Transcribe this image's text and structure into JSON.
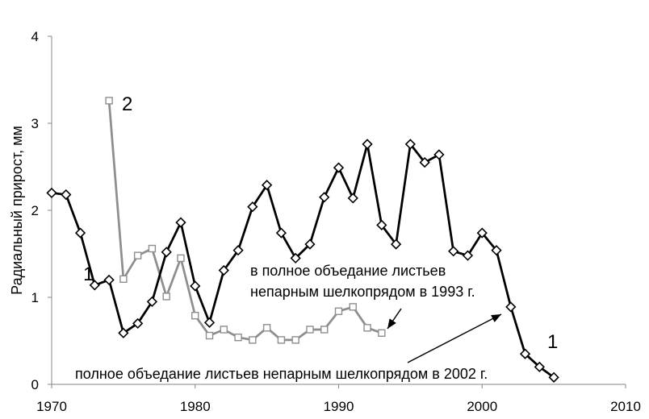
{
  "chart_data": {
    "type": "line",
    "ylabel": "Радиальный прирост, мм",
    "xlim": [
      1970,
      2010
    ],
    "ylim": [
      0,
      4
    ],
    "xticks": [
      1970,
      1980,
      1990,
      2000,
      2010
    ],
    "yticks": [
      0,
      1,
      2,
      3,
      4
    ],
    "grid": false,
    "series": [
      {
        "name": "1",
        "color": "#000000",
        "marker": "diamond",
        "x": [
          1970,
          1971,
          1972,
          1973,
          1974,
          1975,
          1976,
          1977,
          1978,
          1979,
          1980,
          1981,
          1982,
          1983,
          1984,
          1985,
          1986,
          1987,
          1988,
          1989,
          1990,
          1991,
          1992,
          1993,
          1994,
          1995,
          1996,
          1997,
          1998,
          1999,
          2000,
          2001,
          2002,
          2003,
          2004,
          2005
        ],
        "y": [
          2.2,
          2.18,
          1.74,
          1.14,
          1.2,
          0.59,
          0.7,
          0.95,
          1.52,
          1.86,
          1.13,
          0.71,
          1.31,
          1.54,
          2.04,
          2.29,
          1.74,
          1.45,
          1.61,
          2.15,
          2.49,
          2.14,
          2.76,
          1.83,
          1.61,
          2.76,
          2.55,
          2.64,
          1.53,
          1.48,
          1.74,
          1.54,
          0.89,
          0.35,
          0.2,
          0.08
        ]
      },
      {
        "name": "2",
        "color": "#8e8e8e",
        "marker": "square",
        "x": [
          1974,
          1975,
          1976,
          1977,
          1978,
          1979,
          1980,
          1981,
          1982,
          1983,
          1984,
          1985,
          1986,
          1987,
          1988,
          1989,
          1990,
          1991,
          1992,
          1993
        ],
        "y": [
          3.26,
          1.21,
          1.48,
          1.56,
          1.01,
          1.45,
          0.79,
          0.56,
          0.63,
          0.54,
          0.51,
          0.65,
          0.51,
          0.51,
          0.63,
          0.63,
          0.84,
          0.89,
          0.65,
          0.59
        ]
      }
    ],
    "annotations": [
      {
        "lines": [
          "в полное объедание листьев",
          "непарным шелкопрядом в 1993 г."
        ]
      },
      {
        "lines": [
          "полное объедание листьев непарным шелкопрядом в 2002 г."
        ]
      }
    ]
  },
  "colors": {
    "axis": "#868686",
    "annotation_arrow": "#000000"
  }
}
